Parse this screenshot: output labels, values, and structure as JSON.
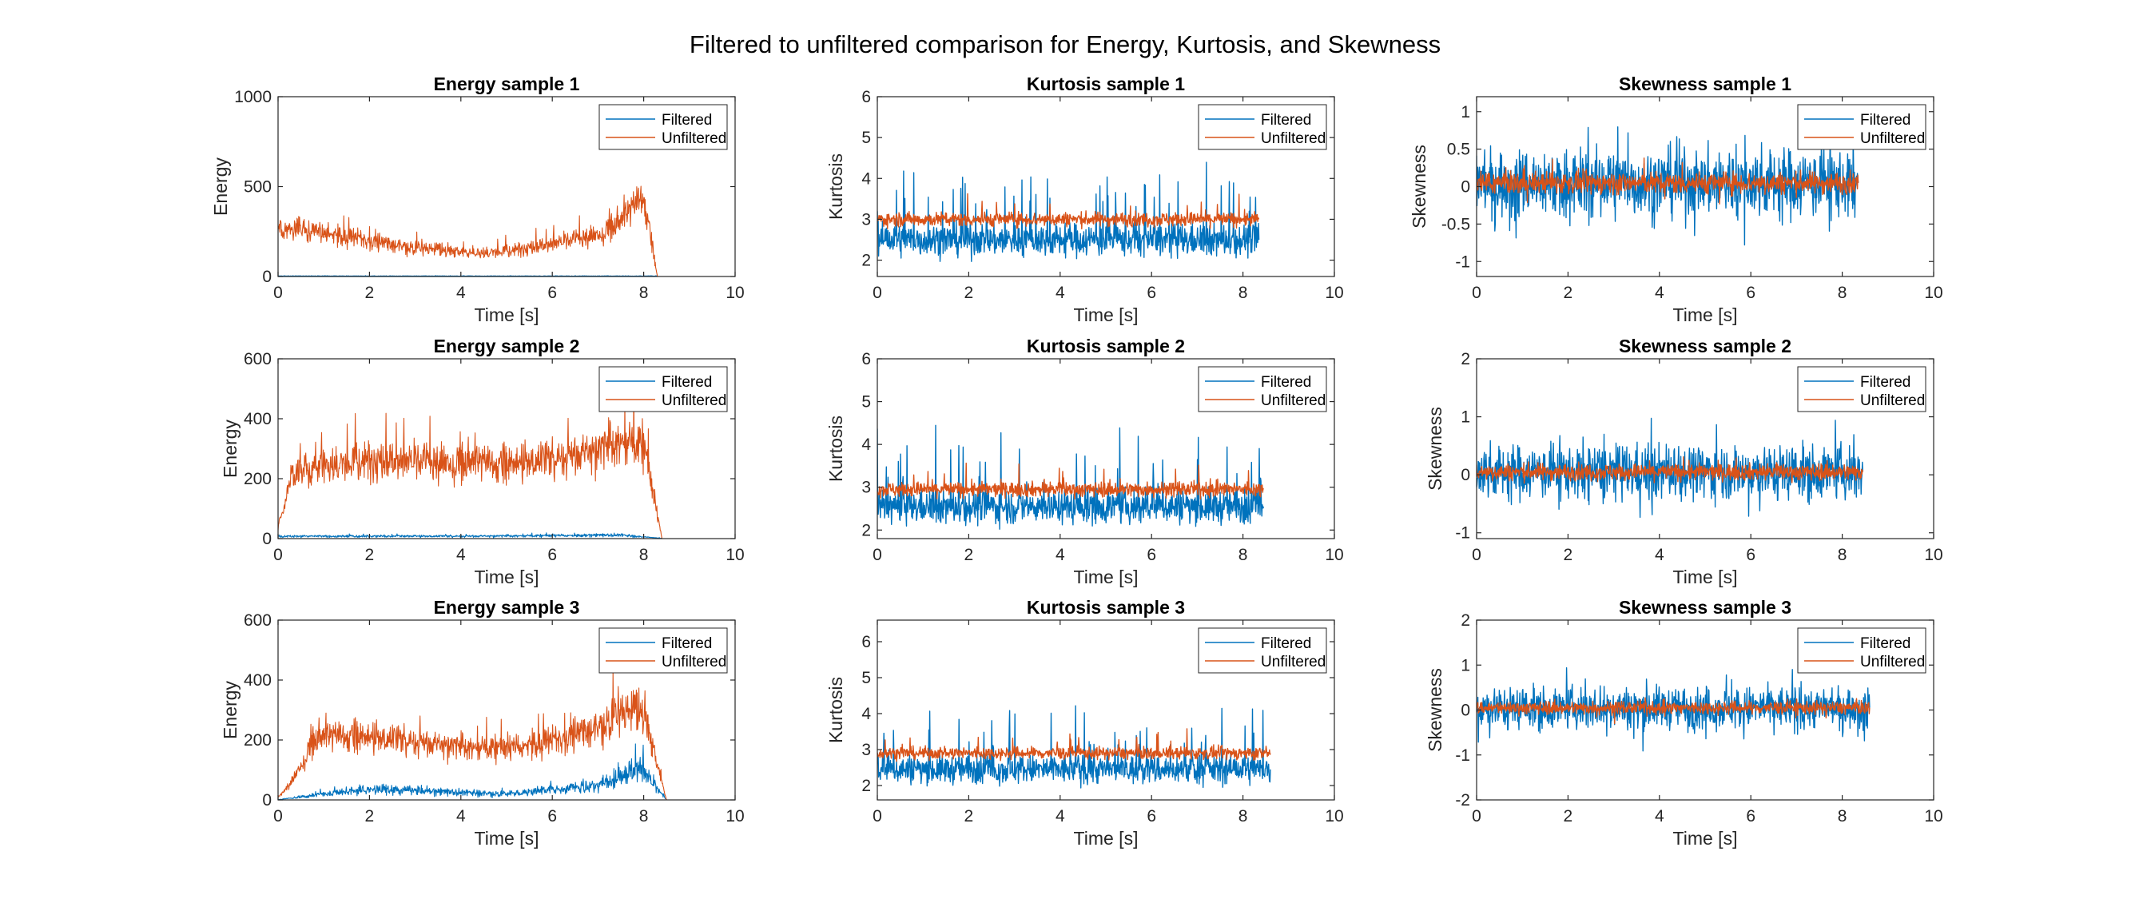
{
  "figure_title": "Filtered to unfiltered comparison for Energy, Kurtosis, and Skewness",
  "colors": {
    "filtered": "#0072BD",
    "unfiltered": "#D95319",
    "axes": "#262626"
  },
  "chart_data": [
    {
      "type": "line",
      "title": "Energy sample 1",
      "xlabel": "Time [s]",
      "ylabel": "Energy",
      "xlim": [
        0,
        10
      ],
      "ylim": [
        0,
        1000
      ],
      "xticks": [
        0,
        2,
        4,
        6,
        8,
        10
      ],
      "yticks": [
        0,
        500,
        1000
      ],
      "grid": false,
      "legend_position": "top-right",
      "series": [
        {
          "name": "Filtered",
          "x": [
            0,
            8.3
          ],
          "y": [
            2,
            2
          ]
        },
        {
          "name": "Unfiltered",
          "x": [
            0,
            0.5,
            1,
            2,
            3,
            4,
            4.5,
            5,
            6,
            7,
            7.5,
            8,
            8.3
          ],
          "y": [
            250,
            260,
            240,
            200,
            160,
            135,
            130,
            140,
            180,
            230,
            300,
            450,
            0
          ]
        }
      ]
    },
    {
      "type": "line",
      "title": "Kurtosis sample 1",
      "xlabel": "Time [s]",
      "ylabel": "Kurtosis",
      "xlim": [
        0,
        10
      ],
      "ylim": [
        1.6,
        6
      ],
      "xticks": [
        0,
        2,
        4,
        6,
        8,
        10
      ],
      "yticks": [
        2,
        3,
        4,
        5,
        6
      ],
      "grid": false,
      "legend_position": "top-right",
      "series": [
        {
          "name": "Filtered",
          "x": [
            0,
            8.35
          ],
          "y": [
            2.5,
            2.5
          ]
        },
        {
          "name": "Unfiltered",
          "x": [
            0,
            8.35
          ],
          "y": [
            3.0,
            3.0
          ]
        }
      ]
    },
    {
      "type": "line",
      "title": "Skewness sample 1",
      "xlabel": "Time [s]",
      "ylabel": "Skewness",
      "xlim": [
        0,
        10
      ],
      "ylim": [
        -1.2,
        1.2
      ],
      "xticks": [
        0,
        2,
        4,
        6,
        8,
        10
      ],
      "yticks": [
        -1,
        -0.5,
        0,
        0.5,
        1
      ],
      "grid": false,
      "legend_position": "top-right",
      "series": [
        {
          "name": "Filtered",
          "x": [
            0,
            8.35
          ],
          "y": [
            0.05,
            0.05
          ]
        },
        {
          "name": "Unfiltered",
          "x": [
            0,
            8.35
          ],
          "y": [
            0.05,
            0.05
          ]
        }
      ]
    },
    {
      "type": "line",
      "title": "Energy sample 2",
      "xlabel": "Time [s]",
      "ylabel": "Energy",
      "xlim": [
        0,
        10
      ],
      "ylim": [
        0,
        600
      ],
      "xticks": [
        0,
        2,
        4,
        6,
        8,
        10
      ],
      "yticks": [
        0,
        200,
        400,
        600
      ],
      "grid": false,
      "legend_position": "top-right",
      "series": [
        {
          "name": "Filtered",
          "x": [
            0,
            4,
            7.5,
            8.4
          ],
          "y": [
            8,
            8,
            12,
            0
          ]
        },
        {
          "name": "Unfiltered",
          "x": [
            0,
            0.3,
            1,
            2,
            3,
            4,
            5,
            6,
            7,
            7.5,
            8,
            8.4
          ],
          "y": [
            40,
            220,
            240,
            260,
            255,
            250,
            250,
            265,
            300,
            330,
            320,
            0
          ]
        }
      ]
    },
    {
      "type": "line",
      "title": "Kurtosis sample 2",
      "xlabel": "Time [s]",
      "ylabel": "Kurtosis",
      "xlim": [
        0,
        10
      ],
      "ylim": [
        1.8,
        6
      ],
      "xticks": [
        0,
        2,
        4,
        6,
        8,
        10
      ],
      "yticks": [
        2,
        3,
        4,
        5,
        6
      ],
      "grid": false,
      "legend_position": "top-right",
      "series": [
        {
          "name": "Filtered",
          "x": [
            0,
            8.45
          ],
          "y": [
            2.55,
            2.55
          ]
        },
        {
          "name": "Unfiltered",
          "x": [
            0,
            8.45
          ],
          "y": [
            2.95,
            2.95
          ]
        }
      ]
    },
    {
      "type": "line",
      "title": "Skewness sample 2",
      "xlabel": "Time [s]",
      "ylabel": "Skewness",
      "xlim": [
        0,
        10
      ],
      "ylim": [
        -1.1,
        2
      ],
      "xticks": [
        0,
        2,
        4,
        6,
        8,
        10
      ],
      "yticks": [
        -1,
        0,
        1,
        2
      ],
      "grid": false,
      "legend_position": "top-right",
      "series": [
        {
          "name": "Filtered",
          "x": [
            0,
            8.45
          ],
          "y": [
            0.05,
            0.05
          ]
        },
        {
          "name": "Unfiltered",
          "x": [
            0,
            8.45
          ],
          "y": [
            0.05,
            0.05
          ]
        }
      ]
    },
    {
      "type": "line",
      "title": "Energy sample 3",
      "xlabel": "Time [s]",
      "ylabel": "Energy",
      "xlim": [
        0,
        10
      ],
      "ylim": [
        0,
        600
      ],
      "xticks": [
        0,
        2,
        4,
        6,
        8,
        10
      ],
      "yticks": [
        0,
        200,
        400,
        600
      ],
      "grid": false,
      "legend_position": "top-right",
      "series": [
        {
          "name": "Filtered",
          "x": [
            0,
            0.5,
            1,
            2,
            3,
            4,
            5,
            6,
            7,
            7.5,
            7.9,
            8.5
          ],
          "y": [
            0,
            10,
            20,
            35,
            30,
            25,
            20,
            35,
            50,
            75,
            110,
            0
          ]
        },
        {
          "name": "Unfiltered",
          "x": [
            0,
            0.3,
            0.8,
            1.5,
            2,
            3,
            4,
            5,
            6,
            7,
            7.5,
            8,
            8.5
          ],
          "y": [
            10,
            60,
            200,
            215,
            210,
            195,
            180,
            175,
            195,
            245,
            290,
            290,
            0
          ]
        }
      ]
    },
    {
      "type": "line",
      "title": "Kurtosis sample 3",
      "xlabel": "Time [s]",
      "ylabel": "Kurtosis",
      "xlim": [
        0,
        10
      ],
      "ylim": [
        1.6,
        6.6
      ],
      "xticks": [
        0,
        2,
        4,
        6,
        8,
        10
      ],
      "yticks": [
        2,
        3,
        4,
        5,
        6
      ],
      "grid": false,
      "legend_position": "top-right",
      "series": [
        {
          "name": "Filtered",
          "x": [
            0,
            8.6
          ],
          "y": [
            2.45,
            2.45
          ]
        },
        {
          "name": "Unfiltered",
          "x": [
            0,
            8.6
          ],
          "y": [
            2.9,
            2.9
          ]
        }
      ]
    },
    {
      "type": "line",
      "title": "Skewness sample 3",
      "xlabel": "Time [s]",
      "ylabel": "Skewness",
      "xlim": [
        0,
        10
      ],
      "ylim": [
        -2,
        2
      ],
      "xticks": [
        0,
        2,
        4,
        6,
        8,
        10
      ],
      "yticks": [
        -2,
        -1,
        0,
        1,
        2
      ],
      "grid": false,
      "legend_position": "top-right",
      "series": [
        {
          "name": "Filtered",
          "x": [
            0,
            8.6
          ],
          "y": [
            0.05,
            0.05
          ]
        },
        {
          "name": "Unfiltered",
          "x": [
            0,
            8.6
          ],
          "y": [
            0.05,
            0.05
          ]
        }
      ]
    }
  ]
}
